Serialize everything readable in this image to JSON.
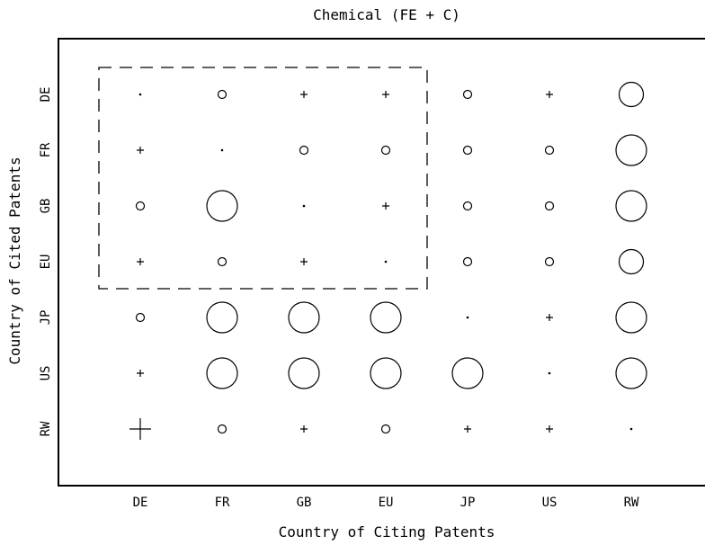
{
  "chart_data": {
    "type": "scatter",
    "title": "Chemical (FE + C)",
    "xlabel": "Country of Citing Patents",
    "ylabel": "Country of Cited Patents",
    "x_categories": [
      "DE",
      "FR",
      "GB",
      "EU",
      "JP",
      "US",
      "RW"
    ],
    "y_categories": [
      "DE",
      "FR",
      "GB",
      "EU",
      "JP",
      "US",
      "RW"
    ],
    "marker_legend": {
      "dot": "diagonal cell",
      "plus": "small value",
      "circle": "value above threshold, radius proportional to magnitude"
    },
    "cells": [
      {
        "cited": "DE",
        "citing": "DE",
        "marker": "dot"
      },
      {
        "cited": "DE",
        "citing": "FR",
        "marker": "circle",
        "magnitude": 1
      },
      {
        "cited": "DE",
        "citing": "GB",
        "marker": "plus",
        "magnitude": 1
      },
      {
        "cited": "DE",
        "citing": "EU",
        "marker": "plus",
        "magnitude": 1
      },
      {
        "cited": "DE",
        "citing": "JP",
        "marker": "circle",
        "magnitude": 1
      },
      {
        "cited": "DE",
        "citing": "US",
        "marker": "plus",
        "magnitude": 1
      },
      {
        "cited": "DE",
        "citing": "RW",
        "marker": "circle",
        "magnitude": 3
      },
      {
        "cited": "FR",
        "citing": "DE",
        "marker": "plus",
        "magnitude": 1
      },
      {
        "cited": "FR",
        "citing": "FR",
        "marker": "dot"
      },
      {
        "cited": "FR",
        "citing": "GB",
        "marker": "circle",
        "magnitude": 1
      },
      {
        "cited": "FR",
        "citing": "EU",
        "marker": "circle",
        "magnitude": 1
      },
      {
        "cited": "FR",
        "citing": "JP",
        "marker": "circle",
        "magnitude": 1
      },
      {
        "cited": "FR",
        "citing": "US",
        "marker": "circle",
        "magnitude": 1
      },
      {
        "cited": "FR",
        "citing": "RW",
        "marker": "circle",
        "magnitude": 4
      },
      {
        "cited": "GB",
        "citing": "DE",
        "marker": "circle",
        "magnitude": 1
      },
      {
        "cited": "GB",
        "citing": "FR",
        "marker": "circle",
        "magnitude": 4
      },
      {
        "cited": "GB",
        "citing": "GB",
        "marker": "dot"
      },
      {
        "cited": "GB",
        "citing": "EU",
        "marker": "plus",
        "magnitude": 1
      },
      {
        "cited": "GB",
        "citing": "JP",
        "marker": "circle",
        "magnitude": 1
      },
      {
        "cited": "GB",
        "citing": "US",
        "marker": "circle",
        "magnitude": 1
      },
      {
        "cited": "GB",
        "citing": "RW",
        "marker": "circle",
        "magnitude": 4
      },
      {
        "cited": "EU",
        "citing": "DE",
        "marker": "plus",
        "magnitude": 1
      },
      {
        "cited": "EU",
        "citing": "FR",
        "marker": "circle",
        "magnitude": 1
      },
      {
        "cited": "EU",
        "citing": "GB",
        "marker": "plus",
        "magnitude": 1
      },
      {
        "cited": "EU",
        "citing": "EU",
        "marker": "dot"
      },
      {
        "cited": "EU",
        "citing": "JP",
        "marker": "circle",
        "magnitude": 1
      },
      {
        "cited": "EU",
        "citing": "US",
        "marker": "circle",
        "magnitude": 1
      },
      {
        "cited": "EU",
        "citing": "RW",
        "marker": "circle",
        "magnitude": 3
      },
      {
        "cited": "JP",
        "citing": "DE",
        "marker": "circle",
        "magnitude": 1
      },
      {
        "cited": "JP",
        "citing": "FR",
        "marker": "circle",
        "magnitude": 4
      },
      {
        "cited": "JP",
        "citing": "GB",
        "marker": "circle",
        "magnitude": 4
      },
      {
        "cited": "JP",
        "citing": "EU",
        "marker": "circle",
        "magnitude": 4
      },
      {
        "cited": "JP",
        "citing": "JP",
        "marker": "dot"
      },
      {
        "cited": "JP",
        "citing": "US",
        "marker": "plus",
        "magnitude": 1
      },
      {
        "cited": "JP",
        "citing": "RW",
        "marker": "circle",
        "magnitude": 4
      },
      {
        "cited": "US",
        "citing": "DE",
        "marker": "plus",
        "magnitude": 1
      },
      {
        "cited": "US",
        "citing": "FR",
        "marker": "circle",
        "magnitude": 4
      },
      {
        "cited": "US",
        "citing": "GB",
        "marker": "circle",
        "magnitude": 4
      },
      {
        "cited": "US",
        "citing": "EU",
        "marker": "circle",
        "magnitude": 4
      },
      {
        "cited": "US",
        "citing": "JP",
        "marker": "circle",
        "magnitude": 4
      },
      {
        "cited": "US",
        "citing": "US",
        "marker": "dot"
      },
      {
        "cited": "US",
        "citing": "RW",
        "marker": "circle",
        "magnitude": 4
      },
      {
        "cited": "RW",
        "citing": "DE",
        "marker": "plus",
        "magnitude": 3
      },
      {
        "cited": "RW",
        "citing": "FR",
        "marker": "circle",
        "magnitude": 1
      },
      {
        "cited": "RW",
        "citing": "GB",
        "marker": "plus",
        "magnitude": 1
      },
      {
        "cited": "RW",
        "citing": "EU",
        "marker": "circle",
        "magnitude": 1
      },
      {
        "cited": "RW",
        "citing": "JP",
        "marker": "plus",
        "magnitude": 1
      },
      {
        "cited": "RW",
        "citing": "US",
        "marker": "plus",
        "magnitude": 1
      },
      {
        "cited": "RW",
        "citing": "RW",
        "marker": "dot"
      }
    ],
    "highlight_box": {
      "x_from": "DE",
      "x_to": "EU",
      "y_from": "DE",
      "y_to": "EU",
      "style": "dashed"
    },
    "grid": false,
    "legend": "none",
    "colors": {
      "ink": "#000000",
      "background": "#ffffff"
    }
  }
}
